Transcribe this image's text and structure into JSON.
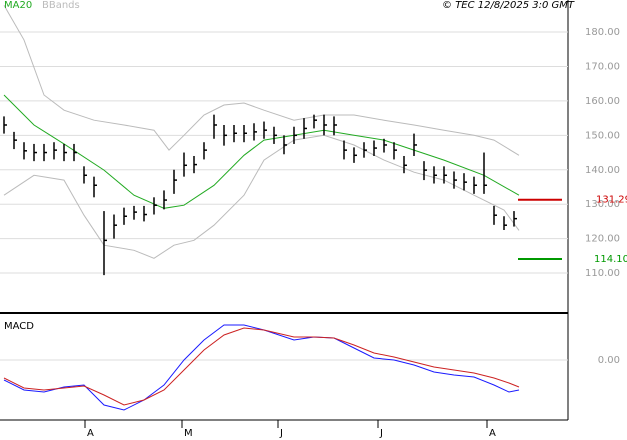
{
  "credit": "© TEC 12/8/2025 3:0 GMT",
  "chart_data": [
    {
      "type": "ohlc",
      "xlim": [
        -0.4,
        56.4
      ],
      "ylim": [
        98.4,
        189.3
      ],
      "yticks": [
        {
          "value": 110,
          "label": "110.00"
        },
        {
          "value": 120,
          "label": "120.00"
        },
        {
          "value": 130,
          "label": "130.00"
        },
        {
          "value": 140,
          "label": "140.00"
        },
        {
          "value": 150,
          "label": "150.00"
        },
        {
          "value": 160,
          "label": "160.00"
        },
        {
          "value": 170,
          "label": "170.00"
        },
        {
          "value": 180,
          "label": "180.00"
        }
      ],
      "grid": true,
      "bar_color": "#000000",
      "high": [
        155.5,
        151,
        148,
        147.5,
        147.5,
        148,
        147.5,
        147.5,
        141,
        138,
        128,
        127,
        129,
        129.5,
        129.5,
        132,
        134,
        140,
        145,
        144,
        148,
        156,
        153,
        153,
        153,
        153.5,
        154,
        152.5,
        150,
        152.5,
        155,
        156,
        156,
        155.5,
        148.5,
        146.5,
        148,
        148.5,
        149,
        148,
        144,
        150.5,
        142.5,
        141,
        141,
        139.5,
        139,
        138,
        145,
        129.5,
        126.5,
        128
      ],
      "low": [
        150.5,
        146,
        143,
        142.5,
        142.5,
        143,
        142.5,
        142.5,
        136,
        132,
        109.4,
        120,
        124,
        125.5,
        125,
        127,
        128.5,
        133,
        138,
        139,
        143,
        149,
        147,
        148,
        148,
        148.5,
        149,
        147.5,
        144.5,
        147.5,
        149,
        152,
        150,
        150,
        143,
        142,
        143.5,
        144,
        145,
        143,
        139,
        144,
        137,
        136,
        136,
        134.5,
        134,
        133,
        133,
        124,
        122.5,
        123.5
      ],
      "close": [
        153,
        148.6,
        145.5,
        145,
        145,
        145.7,
        145,
        145,
        138.4,
        135.5,
        119.5,
        123.9,
        126.5,
        127.7,
        127,
        129.7,
        131.2,
        137,
        141.3,
        141.5,
        145.7,
        153,
        150,
        150.6,
        150.6,
        151,
        151.5,
        150,
        147.2,
        150,
        152,
        154.4,
        153,
        153,
        145.7,
        144.2,
        145.7,
        146.3,
        147.2,
        145.7,
        141.3,
        147.2,
        139.9,
        138.4,
        138.4,
        137,
        136.4,
        135.5,
        135.5,
        126.8,
        123.9,
        125.8
      ],
      "series": [
        {
          "name": "MA20",
          "color": "#22aa22",
          "x": [
            0,
            3,
            6,
            10,
            13,
            16,
            18,
            21,
            24,
            26,
            29,
            32,
            35,
            38,
            41,
            44,
            48,
            51.5
          ],
          "values": [
            161.7,
            153,
            147.5,
            139.9,
            132.6,
            128.8,
            129.7,
            135.5,
            144.2,
            148.6,
            150,
            151.5,
            150,
            148.6,
            145.7,
            142.8,
            138.4,
            132.6
          ]
        },
        {
          "name": "BBands",
          "color": "#bbbbbb",
          "x": [
            0,
            2,
            4,
            6,
            9,
            12,
            15,
            16.5,
            18,
            20,
            22,
            24,
            26,
            29,
            32,
            35,
            38,
            41,
            44,
            47,
            49,
            51.5
          ],
          "values": [
            187.8,
            177.7,
            161.7,
            157.3,
            154.4,
            153,
            151.5,
            145.7,
            150,
            155.9,
            158.8,
            159.4,
            157.3,
            154.4,
            155.9,
            155.9,
            154.4,
            153,
            151.5,
            150,
            148.6,
            144.2
          ]
        },
        {
          "name": "BBands",
          "color": "#bbbbbb",
          "legend": false,
          "x": [
            0,
            3,
            6,
            8,
            10,
            13,
            15,
            17,
            19,
            21,
            24,
            26,
            29,
            32,
            35,
            38,
            41,
            44,
            47,
            50,
            51.5
          ],
          "values": [
            132.6,
            138.4,
            137,
            126.8,
            118.1,
            116.6,
            114.3,
            118.1,
            119.5,
            123.9,
            132.6,
            142.8,
            148.6,
            150,
            147.2,
            142.8,
            139.3,
            137,
            132.6,
            128.3,
            122.4
          ]
        }
      ],
      "markers": [
        {
          "value": 131.29,
          "color": "#cc0000"
        },
        {
          "value": 114.1,
          "label": "114.10",
          "color": "#009900"
        }
      ],
      "xticks": [
        {
          "value": 8.1,
          "label": "A"
        },
        {
          "value": 17.8,
          "label": "M"
        },
        {
          "value": 27.4,
          "label": "J"
        },
        {
          "value": 37.4,
          "label": "J"
        },
        {
          "value": 48.3,
          "label": "A"
        }
      ]
    },
    {
      "type": "line",
      "title": "MACD",
      "xlim": [
        -0.4,
        56.4
      ],
      "ylim": [
        -3,
        2.2
      ],
      "yticks": [
        {
          "value": 0,
          "label": "0.00"
        }
      ],
      "series": [
        {
          "color": "#1a1aff",
          "x": [
            0,
            2,
            4,
            6,
            8,
            10,
            12,
            14,
            16,
            18,
            20,
            22,
            24,
            26,
            29,
            31,
            33,
            35,
            37,
            39,
            41,
            43,
            45,
            47,
            49,
            50.5,
            51.5
          ],
          "values": [
            -1,
            -1.5,
            -1.6,
            -1.35,
            -1.25,
            -2.25,
            -2.5,
            -2,
            -1.25,
            0,
            1,
            1.75,
            1.75,
            1.5,
            1,
            1.15,
            1.1,
            0.6,
            0.1,
            0,
            -0.25,
            -0.6,
            -0.75,
            -0.85,
            -1.25,
            -1.6,
            -1.5
          ]
        },
        {
          "color": "#cc2222",
          "x": [
            0,
            2,
            4,
            6,
            8,
            10,
            12,
            14,
            16,
            18,
            20,
            22,
            24,
            26,
            29,
            31,
            33,
            35,
            37,
            39,
            41,
            43,
            45,
            47,
            49,
            50.5,
            51.5
          ],
          "values": [
            -0.9,
            -1.4,
            -1.5,
            -1.4,
            -1.3,
            -1.75,
            -2.25,
            -2,
            -1.5,
            -0.5,
            0.5,
            1.25,
            1.6,
            1.5,
            1.15,
            1.15,
            1.1,
            0.75,
            0.35,
            0.15,
            -0.1,
            -0.35,
            -0.5,
            -0.65,
            -0.9,
            -1.15,
            -1.35
          ]
        }
      ]
    }
  ]
}
